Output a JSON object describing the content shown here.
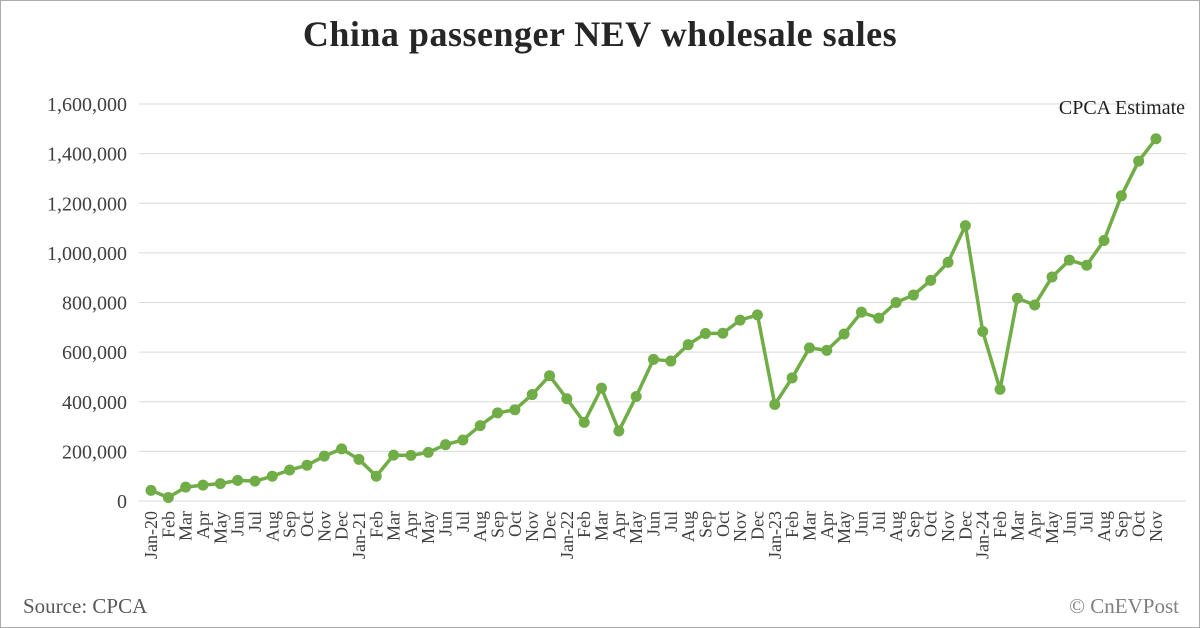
{
  "chart_data": {
    "type": "line",
    "title": "China passenger NEV wholesale sales",
    "annotation": "CPCA Estimate",
    "xlabel": "",
    "ylabel": "",
    "ylim": [
      0,
      1600000
    ],
    "ytick_step": 200000,
    "grid": true,
    "line_color": "#70ad47",
    "categories": [
      "Jan-20",
      "Feb",
      "Mar",
      "Apr",
      "May",
      "Jun",
      "Jul",
      "Aug",
      "Sep",
      "Oct",
      "Nov",
      "Dec",
      "Jan-21",
      "Feb",
      "Mar",
      "Apr",
      "May",
      "Jun",
      "Jul",
      "Aug",
      "Sep",
      "Oct",
      "Nov",
      "Dec",
      "Jan-22",
      "Feb",
      "Mar",
      "Apr",
      "May",
      "Jun",
      "Jul",
      "Aug",
      "Sep",
      "Oct",
      "Nov",
      "Dec",
      "Jan-23",
      "Feb",
      "Mar",
      "Apr",
      "May",
      "Jun",
      "Jul",
      "Aug",
      "Sep",
      "Oct",
      "Nov",
      "Dec",
      "Jan-24",
      "Feb",
      "Mar",
      "Apr",
      "May",
      "Jun",
      "Jul",
      "Aug",
      "Sep",
      "Oct",
      "Nov"
    ],
    "series": [
      {
        "name": "China passenger NEV wholesale sales",
        "values": [
          43000,
          14000,
          56000,
          64000,
          70000,
          83000,
          80000,
          100000,
          125000,
          144000,
          181000,
          210000,
          168000,
          100000,
          185000,
          184000,
          196000,
          227000,
          246000,
          304000,
          355000,
          368000,
          429000,
          505000,
          412000,
          317000,
          455000,
          282000,
          421000,
          571000,
          564000,
          630000,
          675000,
          676000,
          729000,
          750000,
          389000,
          496000,
          617000,
          607000,
          673000,
          761000,
          737000,
          800000,
          830000,
          889000,
          962000,
          1110000,
          683000,
          450000,
          817000,
          790000,
          903000,
          971000,
          950000,
          1050000,
          1230000,
          1370000,
          1460000
        ]
      }
    ]
  },
  "footer": {
    "source": "Source: CPCA",
    "copyright": "© CnEVPost"
  }
}
